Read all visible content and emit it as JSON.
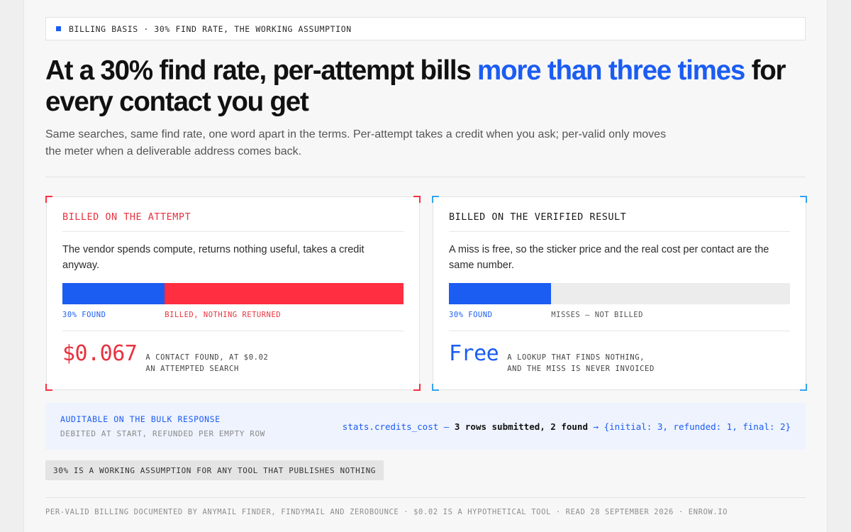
{
  "eyebrow": "BILLING BASIS · 30% FIND RATE, THE WORKING ASSUMPTION",
  "headline": {
    "before": "At a 30% find rate, per-attempt bills ",
    "highlight": "more than three times",
    "after": " for every contact you get"
  },
  "lede": "Same searches, same find rate, one word apart in the terms. Per-attempt takes a credit when you ask; per-valid only moves the meter when a deliverable address comes back.",
  "find_rate_percent": 30,
  "cards": {
    "attempt": {
      "title": "BILLED ON THE ATTEMPT",
      "description": "The vendor spends compute, returns nothing useful, takes a credit anyway.",
      "found_label": "30% FOUND",
      "rest_label": "BILLED, NOTHING RETURNED",
      "price": "$0.067",
      "note_line1": "A CONTACT FOUND, AT $0.02",
      "note_line2": "AN ATTEMPTED SEARCH",
      "accent": "#ff2e40"
    },
    "verified": {
      "title": "BILLED ON THE VERIFIED RESULT",
      "description": "A miss is free, so the sticker price and the real cost per contact are the same number.",
      "found_label": "30% FOUND",
      "rest_label": "MISSES — NOT BILLED",
      "price": "Free",
      "note_line1": "A LOOKUP THAT FINDS NOTHING,",
      "note_line2": "AND THE MISS IS NEVER INVOICED",
      "accent": "#35a3ea"
    }
  },
  "audit": {
    "title": "AUDITABLE ON THE BULK RESPONSE",
    "subtitle": "DEBITED AT START, REFUNDED PER EMPTY ROW",
    "code_key": "stats.credits_cost —",
    "code_desc": "3 rows submitted, 2 found",
    "code_arrow": "→",
    "code_value": "{initial: 3, refunded: 1, final: 2}"
  },
  "assumption": "30% IS A WORKING ASSUMPTION FOR ANY TOOL THAT PUBLISHES NOTHING",
  "footer": "PER-VALID BILLING DOCUMENTED BY ANYMAIL FINDER, FINDYMAIL AND ZEROBOUNCE · $0.02 IS A HYPOTHETICAL TOOL · READ 28 SEPTEMBER 2026 · ENROW.IO",
  "colors": {
    "blue": "#1b5cf2",
    "red": "#ff2e40",
    "sky": "#35a3ea"
  }
}
